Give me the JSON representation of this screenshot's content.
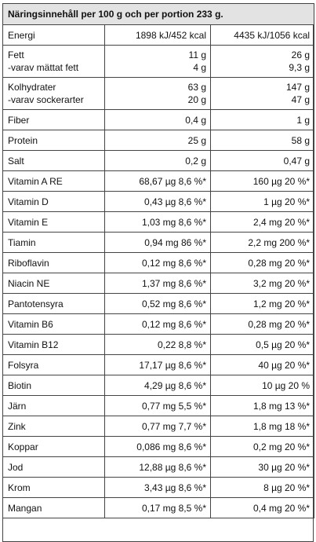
{
  "title": "Näringsinnehåll per 100 g och per portion 233 g.",
  "rows": [
    {
      "name": [
        "Energi"
      ],
      "per100": [
        "1898 kJ/452 kcal"
      ],
      "portion": [
        "4435 kJ/1056 kcal"
      ]
    },
    {
      "name": [
        "Fett",
        "-varav mättat fett"
      ],
      "per100": [
        "11 g",
        "4 g"
      ],
      "portion": [
        "26 g",
        "9,3 g"
      ]
    },
    {
      "name": [
        "Kolhydrater",
        "-varav sockerarter"
      ],
      "per100": [
        "63 g",
        "20 g"
      ],
      "portion": [
        "147 g",
        "47 g"
      ]
    },
    {
      "name": [
        "Fiber"
      ],
      "per100": [
        "0,4 g"
      ],
      "portion": [
        "1 g"
      ]
    },
    {
      "name": [
        "Protein"
      ],
      "per100": [
        "25 g"
      ],
      "portion": [
        "58 g"
      ]
    },
    {
      "name": [
        "Salt"
      ],
      "per100": [
        "0,2 g"
      ],
      "portion": [
        "0,47 g"
      ]
    },
    {
      "name": [
        "Vitamin A RE"
      ],
      "per100": [
        "68,67 µg 8,6 %*"
      ],
      "portion": [
        "160 µg 20 %*"
      ]
    },
    {
      "name": [
        "Vitamin D"
      ],
      "per100": [
        "0,43 µg  8,6 %*"
      ],
      "portion": [
        "1 µg 20 %*"
      ]
    },
    {
      "name": [
        "Vitamin E"
      ],
      "per100": [
        "1,03 mg 8,6 %*"
      ],
      "portion": [
        "2,4 mg 20 %*"
      ]
    },
    {
      "name": [
        "Tiamin"
      ],
      "per100": [
        "0,94 mg 86 %*"
      ],
      "portion": [
        "2,2 mg 200 %*"
      ]
    },
    {
      "name": [
        "Riboflavin"
      ],
      "per100": [
        "0,12 mg 8,6 %*"
      ],
      "portion": [
        "0,28 mg 20 %*"
      ]
    },
    {
      "name": [
        "Niacin NE"
      ],
      "per100": [
        "1,37 mg 8,6 %*"
      ],
      "portion": [
        "3,2 mg 20 %*"
      ]
    },
    {
      "name": [
        "Pantotensyra"
      ],
      "per100": [
        "0,52 mg 8,6 %*"
      ],
      "portion": [
        "1,2 mg 20 %*"
      ]
    },
    {
      "name": [
        "Vitamin B6"
      ],
      "per100": [
        "0,12 mg 8,6 %*"
      ],
      "portion": [
        "0,28 mg 20 %*"
      ]
    },
    {
      "name": [
        "Vitamin B12"
      ],
      "per100": [
        "0,22 8,8 %*"
      ],
      "portion": [
        "0,5 µg 20 %*"
      ]
    },
    {
      "name": [
        "Folsyra"
      ],
      "per100": [
        "17,17 µg 8,6 %*"
      ],
      "portion": [
        "40 µg 20 %*"
      ]
    },
    {
      "name": [
        "Biotin"
      ],
      "per100": [
        "4,29 µg 8,6 %*"
      ],
      "portion": [
        "10 µg 20 %"
      ]
    },
    {
      "name": [
        "Järn"
      ],
      "per100": [
        "0,77 mg 5,5 %*"
      ],
      "portion": [
        "1,8 mg 13 %*"
      ]
    },
    {
      "name": [
        "Zink"
      ],
      "per100": [
        "0,77 mg 7,7 %*"
      ],
      "portion": [
        "1,8 mg 18 %*"
      ]
    },
    {
      "name": [
        "Koppar"
      ],
      "per100": [
        "0,086 mg 8,6 %*"
      ],
      "portion": [
        "0,2 mg 20 %*"
      ]
    },
    {
      "name": [
        "Jod"
      ],
      "per100": [
        "12,88 µg 8,6 %*"
      ],
      "portion": [
        "30 µg 20 %*"
      ]
    },
    {
      "name": [
        "Krom"
      ],
      "per100": [
        "3,43 µg 8,6 %*"
      ],
      "portion": [
        "8 µg 20 %*"
      ]
    },
    {
      "name": [
        "Mangan"
      ],
      "per100": [
        "0,17 mg 8,5 %*"
      ],
      "portion": [
        "0,4 mg 20 %*"
      ]
    }
  ]
}
